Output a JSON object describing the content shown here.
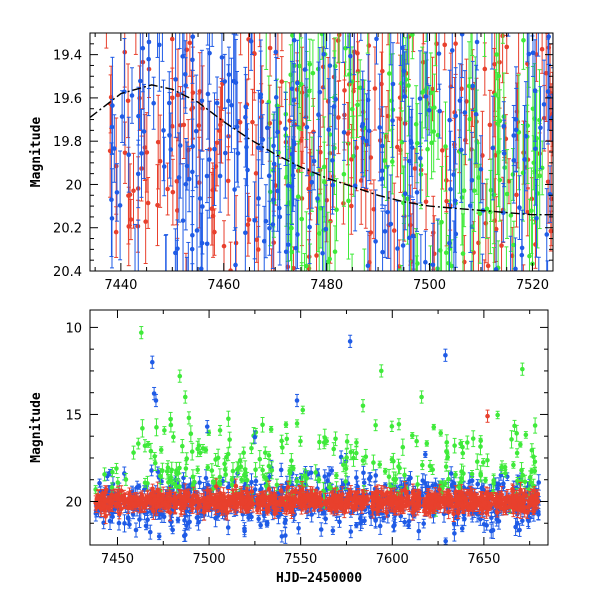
{
  "figure": {
    "xlabel": "HJD−2450000"
  },
  "colors": {
    "red": "#e8402d",
    "green": "#3fea3a",
    "blue": "#1f5be6",
    "model": "#000000"
  },
  "chart_data": [
    {
      "id": "top",
      "type": "scatter",
      "title": "",
      "xlabel": "",
      "ylabel": "Magnitude",
      "xlim": [
        7434,
        7524
      ],
      "ylim": [
        20.4,
        19.3
      ],
      "y_inverted": true,
      "xticks": [
        7440,
        7460,
        7480,
        7500,
        7520
      ],
      "yticks": [
        19.4,
        19.6,
        19.8,
        20,
        20.2,
        20.4
      ],
      "yticklabels": [
        "19.4",
        "19.6",
        "19.8",
        "20",
        "20.2",
        "20.4"
      ],
      "error_bars": true,
      "series": [
        {
          "color": "red",
          "x_range": [
            7437,
            7524
          ],
          "y_center": 19.8,
          "y_spread": 0.35,
          "err": 0.15,
          "n": 260
        },
        {
          "color": "green",
          "x_range": [
            7468,
            7522
          ],
          "y_center": 19.9,
          "y_spread": 0.45,
          "err": 0.18,
          "n": 180
        },
        {
          "color": "blue",
          "x_range": [
            7437,
            7524
          ],
          "y_center": 19.8,
          "y_spread": 0.45,
          "err": 0.18,
          "n": 300
        }
      ],
      "model_curve": {
        "x": [
          7434,
          7440,
          7446,
          7450,
          7455,
          7460,
          7465,
          7470,
          7475,
          7480,
          7485,
          7490,
          7495,
          7500,
          7505,
          7510,
          7515,
          7520,
          7524
        ],
        "y": [
          19.69,
          19.58,
          19.54,
          19.56,
          19.62,
          19.71,
          19.79,
          19.86,
          19.92,
          19.97,
          20.01,
          20.05,
          20.08,
          20.1,
          20.11,
          20.12,
          20.13,
          20.14,
          20.14
        ]
      }
    },
    {
      "id": "bottom",
      "type": "scatter",
      "title": "",
      "xlabel": "HJD−2450000",
      "ylabel": "Magnitude",
      "xlim": [
        7435,
        7685
      ],
      "ylim": [
        22.5,
        9
      ],
      "y_inverted": true,
      "xticks": [
        7450,
        7500,
        7550,
        7600,
        7650
      ],
      "yticks": [
        10,
        15,
        20
      ],
      "yticklabels": [
        "10",
        "15",
        "20"
      ],
      "error_bars": true,
      "series": [
        {
          "color": "blue",
          "baseline": 20.0,
          "spread": 1.3,
          "n": 700
        },
        {
          "color": "green",
          "baseline": 18.6,
          "spread": 1.2,
          "n": 250
        },
        {
          "color": "red",
          "baseline": 20.0,
          "spread": 0.45,
          "n": 900
        }
      ],
      "outliers": [
        {
          "x": 7463,
          "y": 10.3,
          "color": "green"
        },
        {
          "x": 7469,
          "y": 12.0,
          "color": "blue"
        },
        {
          "x": 7470,
          "y": 13.8,
          "color": "blue"
        },
        {
          "x": 7471,
          "y": 14.2,
          "color": "blue"
        },
        {
          "x": 7484,
          "y": 12.8,
          "color": "green"
        },
        {
          "x": 7487,
          "y": 14.0,
          "color": "green"
        },
        {
          "x": 7489,
          "y": 15.2,
          "color": "green"
        },
        {
          "x": 7499,
          "y": 15.7,
          "color": "blue"
        },
        {
          "x": 7548,
          "y": 14.2,
          "color": "blue"
        },
        {
          "x": 7577,
          "y": 10.8,
          "color": "blue"
        },
        {
          "x": 7584,
          "y": 14.5,
          "color": "green"
        },
        {
          "x": 7594,
          "y": 12.5,
          "color": "green"
        },
        {
          "x": 7616,
          "y": 14.0,
          "color": "green"
        },
        {
          "x": 7629,
          "y": 11.6,
          "color": "blue"
        },
        {
          "x": 7652,
          "y": 15.1,
          "color": "red"
        },
        {
          "x": 7671,
          "y": 12.4,
          "color": "green"
        },
        {
          "x": 7465,
          "y": 16.8,
          "color": "green"
        },
        {
          "x": 7540,
          "y": 16.9,
          "color": "green"
        },
        {
          "x": 7525,
          "y": 16.3,
          "color": "blue"
        }
      ]
    }
  ]
}
